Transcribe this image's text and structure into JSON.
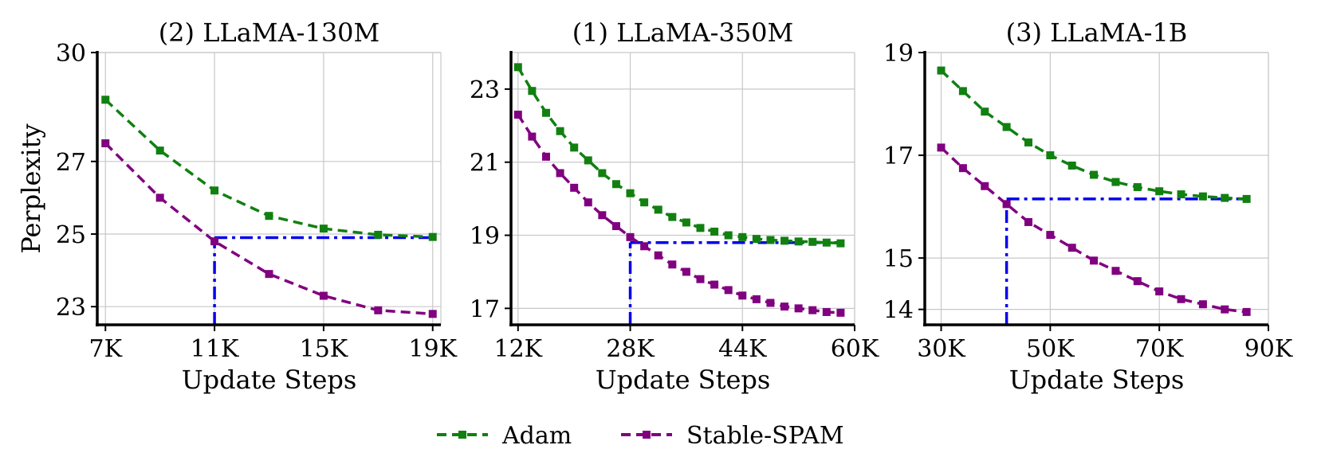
{
  "colors": {
    "adam": "#118011",
    "stable_spam": "#800080",
    "reference": "#0000ee",
    "grid": "#c8c8c8"
  },
  "legend": {
    "items": [
      "Adam",
      "Stable-SPAM"
    ],
    "placement": "bottom-center"
  },
  "chart_data": [
    {
      "type": "line",
      "title": "(2) LLaMA-130M",
      "xlabel": "Update Steps",
      "ylabel": "Perplexity",
      "xlim": [
        6.7,
        19.3
      ],
      "ylim": [
        22.5,
        30
      ],
      "xticks": [
        7,
        11,
        15,
        19
      ],
      "xtick_labels": [
        "7K",
        "11K",
        "15K",
        "19K"
      ],
      "yticks": [
        23,
        25,
        27,
        30
      ],
      "ytick_labels": [
        "23",
        "25",
        "27",
        "30"
      ],
      "grid": true,
      "series": [
        {
          "name": "Adam",
          "x": [
            7,
            9,
            11,
            13,
            15,
            17,
            19
          ],
          "y": [
            28.7,
            27.3,
            26.2,
            25.5,
            25.15,
            24.98,
            24.92
          ]
        },
        {
          "name": "Stable-SPAM",
          "x": [
            7,
            9,
            11,
            13,
            15,
            17,
            19
          ],
          "y": [
            27.5,
            26.0,
            24.8,
            23.9,
            23.3,
            22.9,
            22.8
          ]
        }
      ],
      "reference_lines": {
        "x": 11,
        "y": 24.9,
        "x_end": 19
      }
    },
    {
      "type": "line",
      "title": "(1) LLaMA-350M",
      "xlabel": "Update Steps",
      "ylabel": "",
      "xlim": [
        11.0,
        60.0
      ],
      "ylim": [
        16.55,
        24
      ],
      "xticks": [
        12,
        28,
        44,
        60
      ],
      "xtick_labels": [
        "12K",
        "28K",
        "44K",
        "60K"
      ],
      "yticks": [
        17,
        19,
        21,
        23
      ],
      "ytick_labels": [
        "17",
        "19",
        "21",
        "23"
      ],
      "grid": true,
      "series": [
        {
          "name": "Adam",
          "x": [
            12,
            14,
            16,
            18,
            20,
            22,
            24,
            26,
            28,
            30,
            32,
            34,
            36,
            38,
            40,
            42,
            44,
            46,
            48,
            50,
            52,
            54,
            56,
            58
          ],
          "y": [
            23.6,
            22.95,
            22.35,
            21.85,
            21.4,
            21.05,
            20.7,
            20.4,
            20.15,
            19.9,
            19.7,
            19.5,
            19.35,
            19.2,
            19.1,
            19.0,
            18.95,
            18.9,
            18.87,
            18.85,
            18.83,
            18.82,
            18.8,
            18.78
          ]
        },
        {
          "name": "Stable-SPAM",
          "x": [
            12,
            14,
            16,
            18,
            20,
            22,
            24,
            26,
            28,
            30,
            32,
            34,
            36,
            38,
            40,
            42,
            44,
            46,
            48,
            50,
            52,
            54,
            56,
            58
          ],
          "y": [
            22.3,
            21.7,
            21.15,
            20.7,
            20.3,
            19.9,
            19.55,
            19.25,
            18.95,
            18.7,
            18.45,
            18.2,
            18.0,
            17.8,
            17.65,
            17.5,
            17.35,
            17.25,
            17.15,
            17.05,
            17.0,
            16.95,
            16.9,
            16.88
          ]
        }
      ],
      "reference_lines": {
        "x": 28,
        "y": 18.8,
        "x_end": 58
      }
    },
    {
      "type": "line",
      "title": "(3) LLaMA-1B",
      "xlabel": "Update Steps",
      "ylabel": "",
      "xlim": [
        27,
        90
      ],
      "ylim": [
        13.7,
        19
      ],
      "xticks": [
        30,
        50,
        70,
        90
      ],
      "xtick_labels": [
        "30K",
        "50K",
        "70K",
        "90K"
      ],
      "yticks": [
        14,
        15,
        17,
        19
      ],
      "ytick_labels": [
        "14",
        "15",
        "17",
        "19"
      ],
      "grid": true,
      "series": [
        {
          "name": "Adam",
          "x": [
            30,
            34,
            38,
            42,
            46,
            50,
            54,
            58,
            62,
            66,
            70,
            74,
            78,
            82,
            86
          ],
          "y": [
            18.65,
            18.25,
            17.85,
            17.55,
            17.25,
            17.0,
            16.8,
            16.62,
            16.48,
            16.38,
            16.3,
            16.24,
            16.2,
            16.17,
            16.15
          ]
        },
        {
          "name": "Stable-SPAM",
          "x": [
            30,
            34,
            38,
            42,
            46,
            50,
            54,
            58,
            62,
            66,
            70,
            74,
            78,
            82,
            86
          ],
          "y": [
            17.15,
            16.75,
            16.4,
            16.05,
            15.7,
            15.45,
            15.2,
            14.95,
            14.75,
            14.55,
            14.35,
            14.2,
            14.1,
            14.0,
            13.95
          ]
        }
      ],
      "reference_lines": {
        "x": 42,
        "y": 16.15,
        "x_end": 86
      }
    }
  ]
}
